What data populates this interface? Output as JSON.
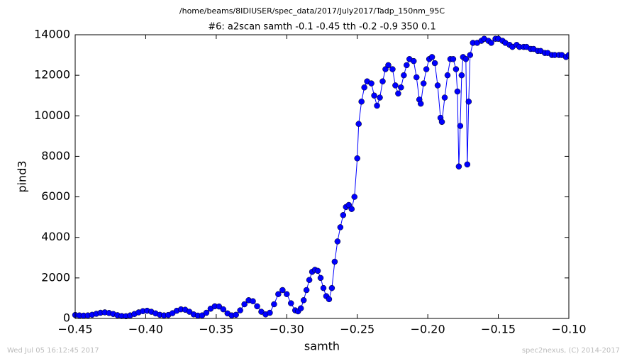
{
  "chart_data": {
    "type": "line",
    "title": "/home/beams/8IDIUSER/spec_data/2017/July2017/Tadp_150nm_95C",
    "subtitle": "#6: a2scan  samth -0.1 -0.45  tth -0.2 -0.9  350 0.1",
    "x_label": "samth",
    "y_label": "pind3",
    "footer_left": "Wed Jul 05 16:12:45 2017",
    "footer_right": "spec2nexus, (C) 2014-2017",
    "xlim": [
      -0.45,
      -0.1
    ],
    "ylim": [
      0,
      14000
    ],
    "xticks": [
      {
        "value": -0.45,
        "label": "−0.45"
      },
      {
        "value": -0.4,
        "label": "−0.40"
      },
      {
        "value": -0.35,
        "label": "−0.35"
      },
      {
        "value": -0.3,
        "label": "−0.30"
      },
      {
        "value": -0.25,
        "label": "−0.25"
      },
      {
        "value": -0.2,
        "label": "−0.20"
      },
      {
        "value": -0.15,
        "label": "−0.15"
      },
      {
        "value": -0.1,
        "label": "−0.10"
      }
    ],
    "yticks": [
      0,
      2000,
      4000,
      6000,
      8000,
      10000,
      12000,
      14000
    ],
    "series": [
      {
        "color": "#0000ff",
        "x": [
          -0.45,
          -0.447,
          -0.444,
          -0.441,
          -0.438,
          -0.435,
          -0.432,
          -0.429,
          -0.426,
          -0.423,
          -0.42,
          -0.417,
          -0.414,
          -0.411,
          -0.408,
          -0.405,
          -0.402,
          -0.399,
          -0.396,
          -0.393,
          -0.39,
          -0.387,
          -0.384,
          -0.381,
          -0.378,
          -0.375,
          -0.372,
          -0.369,
          -0.366,
          -0.363,
          -0.36,
          -0.357,
          -0.354,
          -0.351,
          -0.348,
          -0.345,
          -0.342,
          -0.339,
          -0.336,
          -0.333,
          -0.33,
          -0.327,
          -0.324,
          -0.321,
          -0.318,
          -0.315,
          -0.312,
          -0.309,
          -0.306,
          -0.303,
          -0.3,
          -0.297,
          -0.294,
          -0.292,
          -0.29,
          -0.288,
          -0.286,
          -0.284,
          -0.282,
          -0.28,
          -0.278,
          -0.276,
          -0.274,
          -0.272,
          -0.27,
          -0.268,
          -0.266,
          -0.264,
          -0.262,
          -0.26,
          -0.258,
          -0.256,
          -0.254,
          -0.252,
          -0.25,
          -0.249,
          -0.247,
          -0.245,
          -0.243,
          -0.24,
          -0.238,
          -0.236,
          -0.234,
          -0.232,
          -0.23,
          -0.228,
          -0.225,
          -0.223,
          -0.221,
          -0.219,
          -0.217,
          -0.215,
          -0.213,
          -0.21,
          -0.208,
          -0.206,
          -0.205,
          -0.203,
          -0.201,
          -0.199,
          -0.197,
          -0.195,
          -0.193,
          -0.191,
          -0.19,
          -0.188,
          -0.186,
          -0.184,
          -0.182,
          -0.18,
          -0.179,
          -0.178,
          -0.177,
          -0.176,
          -0.175,
          -0.173,
          -0.172,
          -0.171,
          -0.17,
          -0.168,
          -0.165,
          -0.162,
          -0.16,
          -0.157,
          -0.155,
          -0.152,
          -0.15,
          -0.147,
          -0.145,
          -0.142,
          -0.14,
          -0.137,
          -0.135,
          -0.132,
          -0.13,
          -0.127,
          -0.125,
          -0.122,
          -0.12,
          -0.117,
          -0.115,
          -0.112,
          -0.11,
          -0.107,
          -0.105,
          -0.102,
          -0.1
        ],
        "values": [
          170,
          150,
          140,
          150,
          180,
          230,
          280,
          300,
          270,
          220,
          160,
          120,
          110,
          150,
          220,
          300,
          360,
          380,
          330,
          250,
          180,
          150,
          170,
          260,
          380,
          450,
          430,
          330,
          200,
          140,
          150,
          280,
          480,
          600,
          590,
          450,
          250,
          150,
          180,
          400,
          700,
          900,
          850,
          600,
          330,
          200,
          280,
          700,
          1200,
          1400,
          1200,
          750,
          400,
          350,
          500,
          900,
          1400,
          1900,
          2300,
          2400,
          2350,
          2000,
          1500,
          1100,
          950,
          1500,
          2800,
          3800,
          4500,
          5100,
          5500,
          5600,
          5400,
          6000,
          7900,
          9600,
          10700,
          11400,
          11700,
          11600,
          11000,
          10500,
          10900,
          11700,
          12300,
          12500,
          12300,
          11500,
          11100,
          11400,
          12000,
          12500,
          12800,
          12700,
          11900,
          10800,
          10600,
          11600,
          12300,
          12800,
          12900,
          12600,
          11500,
          9900,
          9700,
          10900,
          12000,
          12800,
          12800,
          12300,
          11200,
          7500,
          9500,
          12000,
          12900,
          12800,
          7600,
          10700,
          13000,
          13600,
          13600,
          13700,
          13800,
          13700,
          13600,
          13800,
          13800,
          13700,
          13600,
          13500,
          13400,
          13500,
          13400,
          13400,
          13400,
          13300,
          13300,
          13200,
          13200,
          13100,
          13100,
          13000,
          13000,
          13000,
          13000,
          12900,
          13000
        ]
      }
    ]
  }
}
